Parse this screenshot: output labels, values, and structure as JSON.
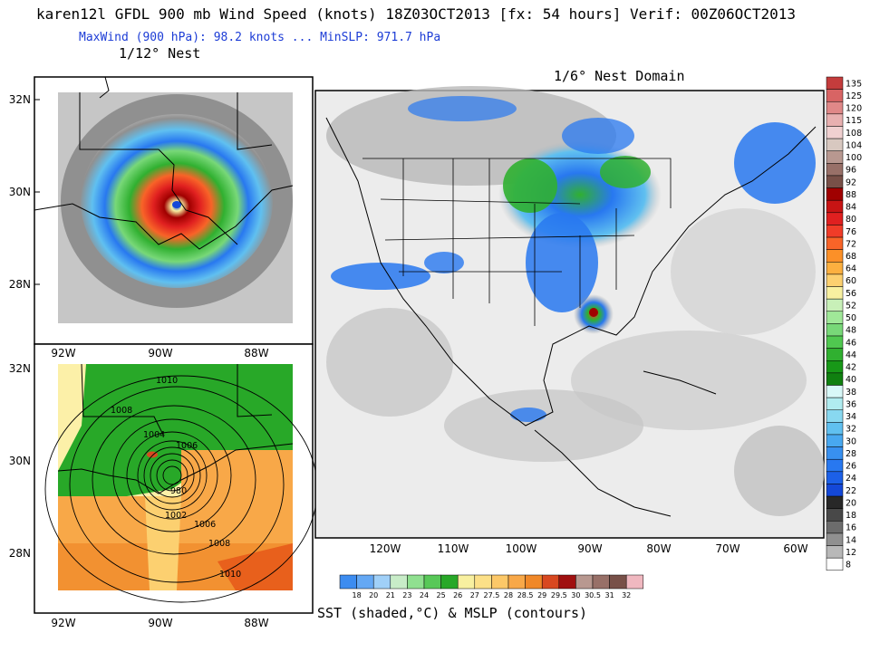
{
  "header": {
    "title": "karen12l GFDL 900 mb Wind Speed (knots) 18Z03OCT2013 [fx: 54 hours] Verif: 00Z06OCT2013",
    "subtitle": "MaxWind (900 hPa):  98.2 knots ... MinSLP: 971.7 hPa",
    "nest_left": "1/12° Nest",
    "nest_right": "1/6° Nest Domain"
  },
  "footer": {
    "sst_caption": "SST (shaded,°C) & MSLP (contours)"
  },
  "left_panels": {
    "lat_labels": [
      "32N",
      "30N",
      "28N"
    ],
    "lon_labels": [
      "92W",
      "90W",
      "88W"
    ],
    "pressure_contours": [
      "1010",
      "1008",
      "1004",
      "1006",
      "980",
      "1002",
      "1006",
      "1008",
      "1010"
    ]
  },
  "right_panel": {
    "lon_labels": [
      "120W",
      "110W",
      "100W",
      "90W",
      "80W",
      "70W",
      "60W"
    ]
  },
  "wind_colorbar": {
    "levels": [
      "135",
      "125",
      "120",
      "115",
      "108",
      "104",
      "100",
      "96",
      "92",
      "88",
      "84",
      "80",
      "76",
      "72",
      "68",
      "64",
      "60",
      "56",
      "52",
      "50",
      "48",
      "46",
      "44",
      "42",
      "40",
      "38",
      "36",
      "34",
      "32",
      "30",
      "28",
      "26",
      "24",
      "22",
      "20",
      "18",
      "16",
      "14",
      "12",
      "8"
    ],
    "colors": [
      "#c43c3c",
      "#d86464",
      "#e08888",
      "#e8b0b0",
      "#f0d0d0",
      "#d8c8c0",
      "#b89890",
      "#987068",
      "#785048",
      "#a00000",
      "#c81414",
      "#e02020",
      "#f03c28",
      "#f86428",
      "#fc9028",
      "#fcb040",
      "#fcd070",
      "#f8f0a0",
      "#c8f0b8",
      "#a0e898",
      "#78d878",
      "#50c850",
      "#30b030",
      "#189818",
      "#108010",
      "#d8f8f8",
      "#b0ecf0",
      "#88d8f0",
      "#60c0f0",
      "#48a8f0",
      "#3890f0",
      "#2878f0",
      "#1c60e8",
      "#1448d8",
      "#282828",
      "#484848",
      "#6c6c6c",
      "#909090",
      "#b8b8b8",
      "#ffffff"
    ]
  },
  "sst_colorbar": {
    "labels": [
      "18",
      "20",
      "21",
      "23",
      "24",
      "25",
      "26",
      "27",
      "27.5",
      "28",
      "28.5",
      "29",
      "29.5",
      "30",
      "30.5",
      "31",
      "32"
    ],
    "colors": [
      "#3c8cf0",
      "#64a8f4",
      "#a0d0f8",
      "#c8ecc8",
      "#90e090",
      "#58c858",
      "#28a828",
      "#f8f0a0",
      "#fce088",
      "#fcc868",
      "#f8a848",
      "#f08828",
      "#d84820",
      "#a01010",
      "#b89890",
      "#987068",
      "#785048",
      "#f0b8c0"
    ]
  }
}
